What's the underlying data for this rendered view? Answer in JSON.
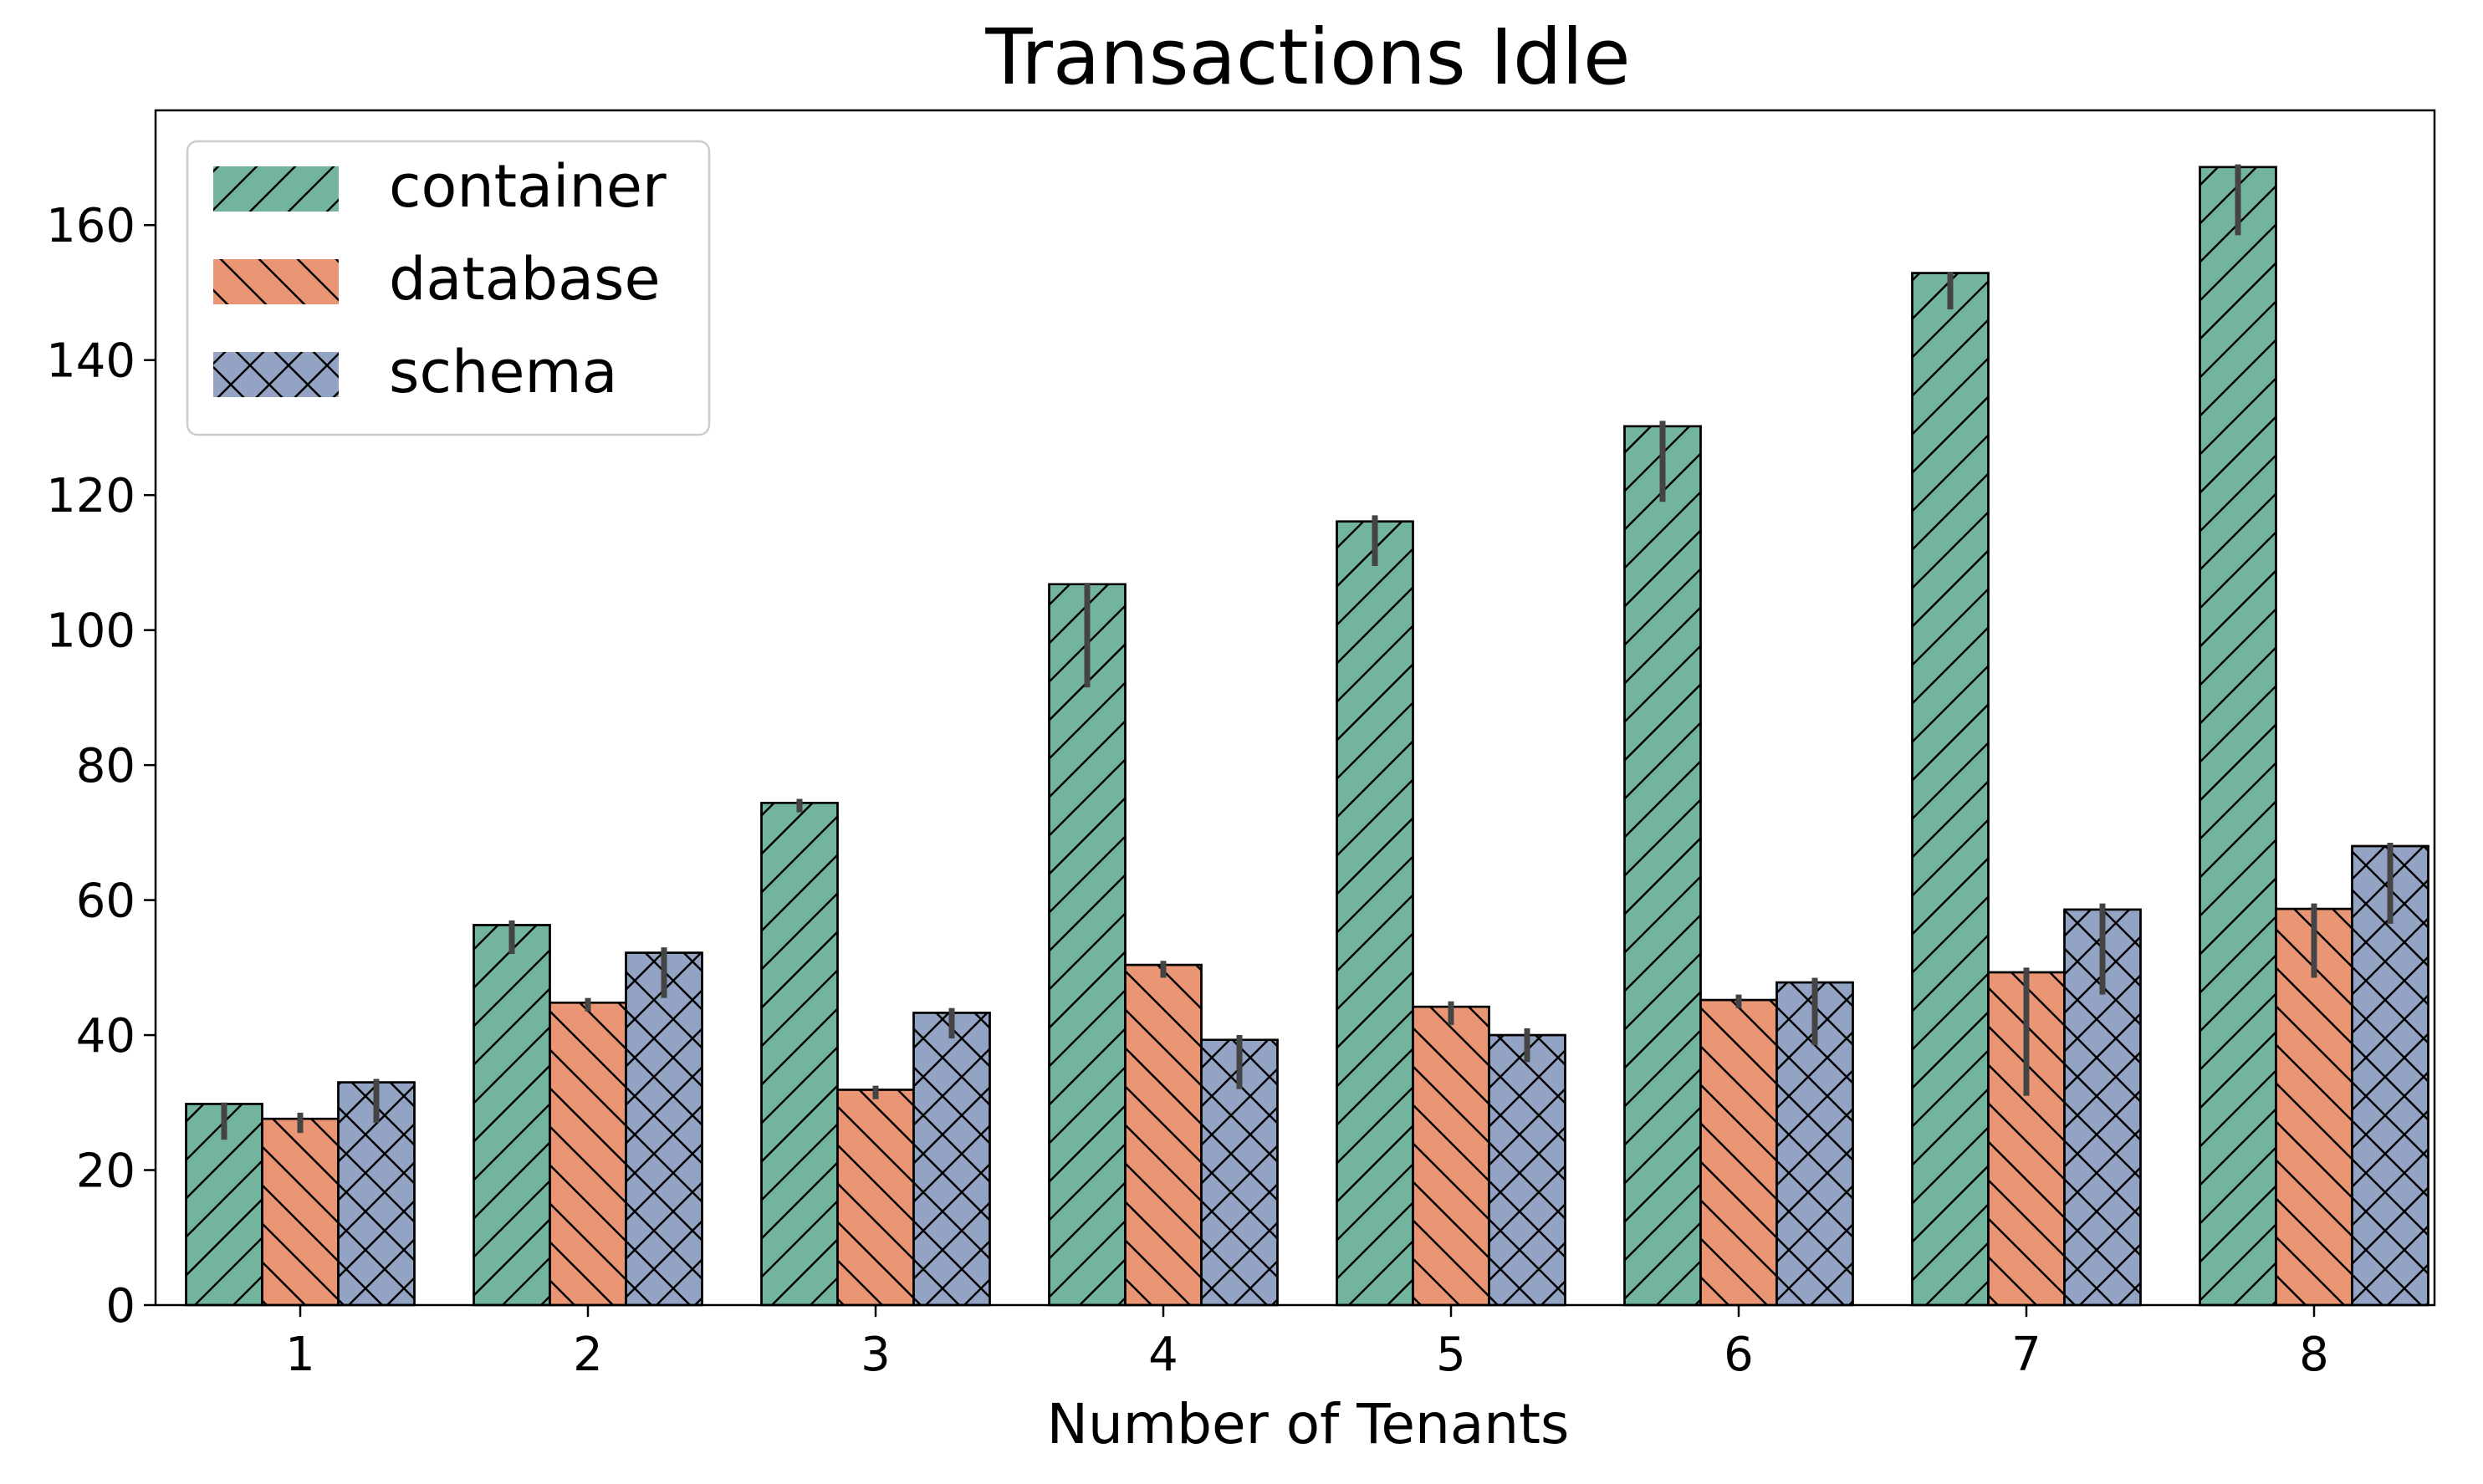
{
  "chart_data": {
    "type": "bar",
    "title": "Transactions Idle",
    "xlabel": "Number of Tenants",
    "ylabel": "",
    "categories": [
      "1",
      "2",
      "3",
      "4",
      "5",
      "6",
      "7",
      "8"
    ],
    "ylim": [
      0,
      177
    ],
    "yticks": [
      0,
      20,
      40,
      60,
      80,
      100,
      120,
      140,
      160
    ],
    "grid": false,
    "legend_position": "top-left",
    "series": [
      {
        "name": "container",
        "color": "#73b49f",
        "hatch": "forward-diagonal",
        "values": [
          29.8,
          56.3,
          74.4,
          106.8,
          116.1,
          130.2,
          152.9,
          168.6
        ],
        "error_low": [
          24.5,
          52.0,
          73.0,
          91.5,
          109.5,
          119.0,
          147.5,
          158.5
        ],
        "error_high": [
          30.0,
          57.0,
          75.0,
          107.0,
          117.0,
          131.0,
          153.0,
          169.0
        ]
      },
      {
        "name": "database",
        "color": "#ea9675",
        "hatch": "back-diagonal",
        "values": [
          27.6,
          44.8,
          31.9,
          50.4,
          44.2,
          45.2,
          49.3,
          58.7
        ],
        "error_low": [
          25.5,
          43.5,
          30.5,
          48.5,
          41.5,
          44.0,
          31.0,
          48.5
        ],
        "error_high": [
          28.5,
          45.5,
          32.5,
          51.0,
          45.0,
          46.0,
          50.0,
          59.5
        ]
      },
      {
        "name": "schema",
        "color": "#93a3c3",
        "hatch": "cross",
        "values": [
          33.0,
          52.2,
          43.3,
          39.3,
          40.0,
          47.8,
          58.6,
          68.0
        ],
        "error_low": [
          27.0,
          45.5,
          39.5,
          32.0,
          36.0,
          38.5,
          46.0,
          56.5
        ],
        "error_high": [
          33.5,
          53.0,
          44.0,
          40.0,
          41.0,
          48.5,
          59.5,
          68.5
        ]
      }
    ]
  }
}
